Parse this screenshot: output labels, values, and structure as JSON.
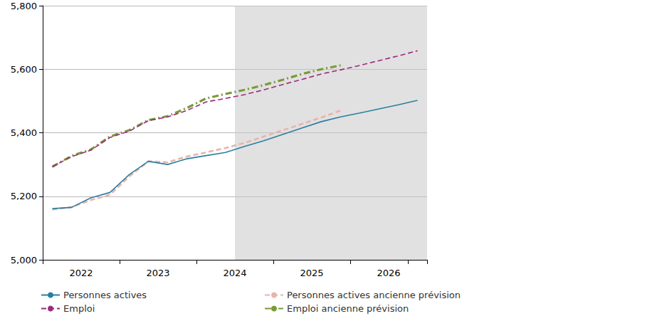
{
  "chart_data": {
    "type": "line",
    "categories": [
      null,
      "2022",
      null,
      null,
      null,
      "2023",
      null,
      null,
      null,
      "2024",
      null,
      null,
      null,
      "2025",
      null,
      null,
      null,
      "2026",
      null,
      null
    ],
    "series": [
      {
        "name": "Personnes actives",
        "color": "#2a7fa0",
        "line_style": "solid",
        "values": [
          5161,
          5165,
          5195,
          5212,
          5268,
          5310,
          5300,
          5318,
          5328,
          5338,
          5357,
          5375,
          5395,
          5415,
          5435,
          5450,
          5462,
          5475,
          5488,
          5502
        ]
      },
      {
        "name": "Personnes actives ancienne prévision",
        "color": "#e8b4aa",
        "line_style": "dashed",
        "values": [
          5158,
          5166,
          5188,
          5205,
          5262,
          5310,
          5307,
          5325,
          5338,
          5352,
          5368,
          5388,
          5408,
          5428,
          5448,
          5470,
          null,
          null,
          null,
          null
        ]
      },
      {
        "name": "Emploi",
        "color": "#9c2a7d",
        "line_style": "dashed",
        "values": [
          5293,
          5325,
          5345,
          5385,
          5405,
          5438,
          5450,
          5470,
          5497,
          5508,
          5520,
          5535,
          5552,
          5568,
          5585,
          5598,
          5612,
          5627,
          5642,
          5658
        ]
      },
      {
        "name": "Emploi ancienne prévision",
        "color": "#7a9a3a",
        "line_style": "dashdot",
        "values": [
          5293,
          5327,
          5347,
          5388,
          5408,
          5440,
          5452,
          5478,
          5508,
          5522,
          5535,
          5550,
          5567,
          5585,
          5600,
          5612,
          null,
          null,
          null,
          null
        ]
      }
    ],
    "forecast_start_index": 10,
    "ylim": [
      5000,
      5800
    ],
    "yticks": [
      5000,
      5200,
      5400,
      5600,
      5800
    ],
    "grid": true,
    "legend": "bottom"
  }
}
